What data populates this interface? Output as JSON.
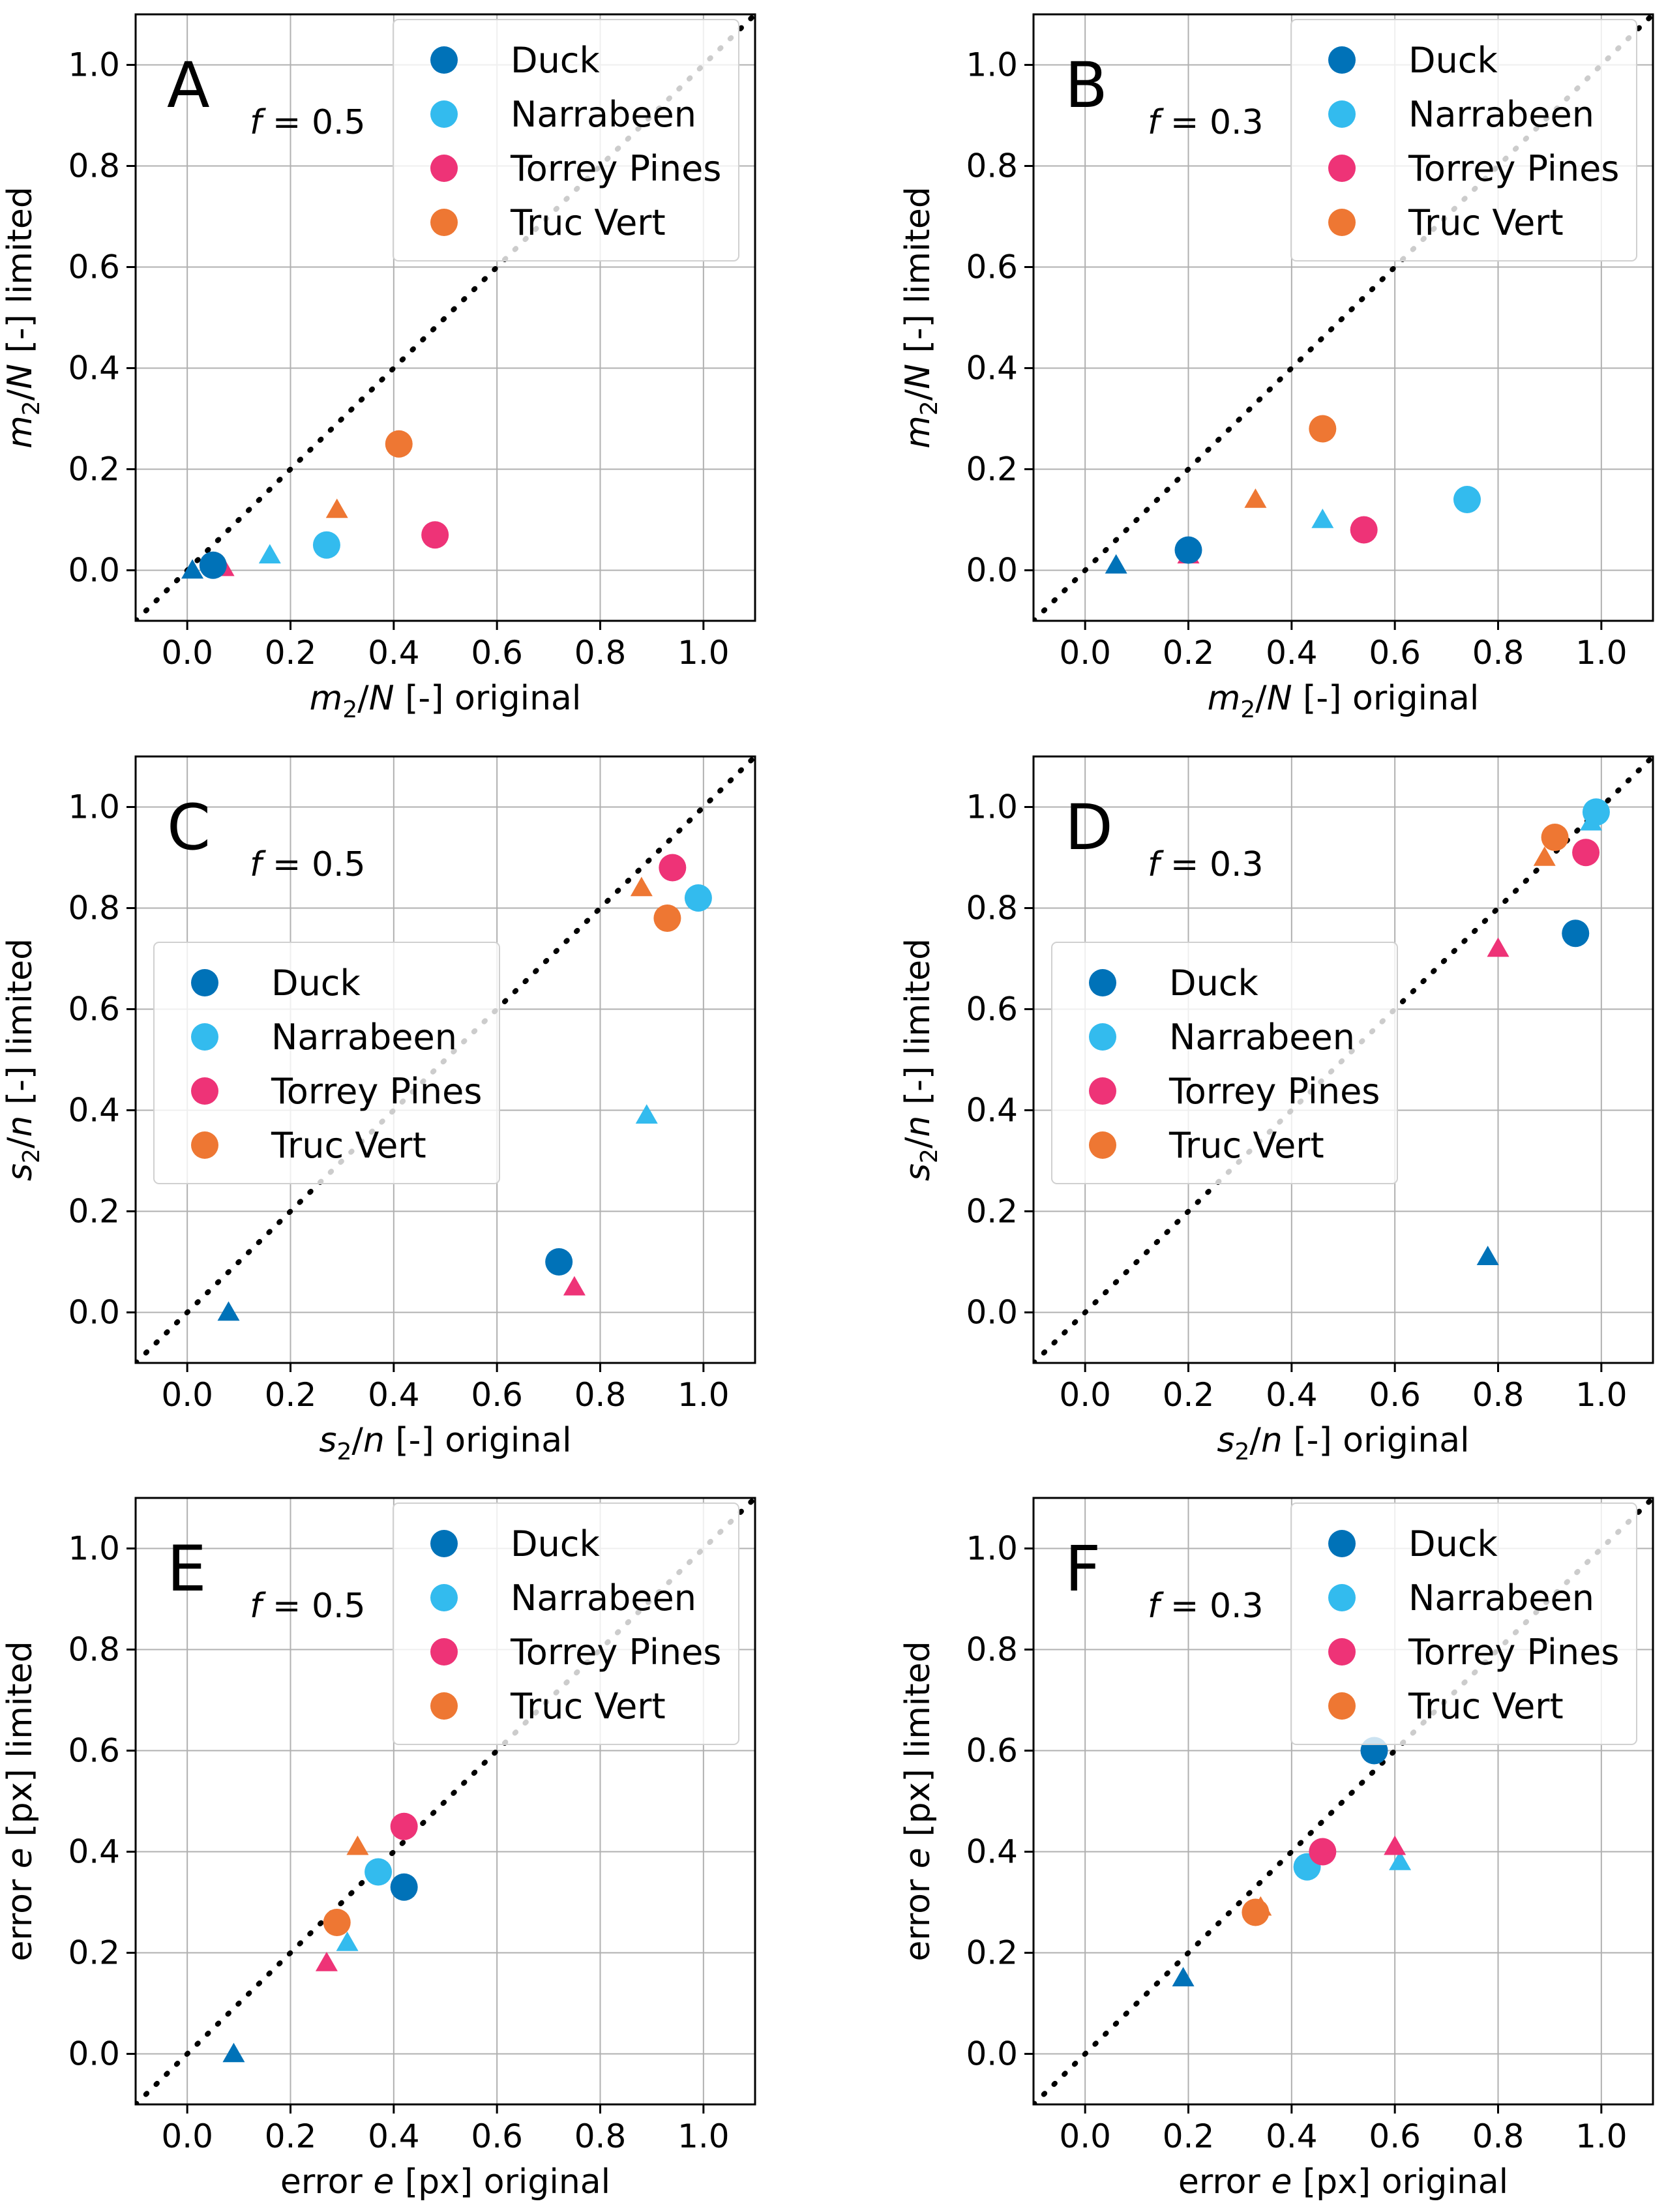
{
  "chart_data": [
    {
      "type": "scatter",
      "panel": "A",
      "annotation": "f = 0.5",
      "xlabel": "m₂/N [-] original",
      "ylabel": "m₂/N [-] limited",
      "xlim": [
        -0.1,
        1.1
      ],
      "ylim": [
        -0.1,
        1.1
      ],
      "ticks": [
        "0.0",
        "0.2",
        "0.4",
        "0.6",
        "0.8",
        "1.0"
      ],
      "legend": {
        "position": "top-right",
        "entries": [
          "Duck",
          "Narrabeen",
          "Torrey Pines",
          "Truc Vert"
        ]
      },
      "series": [
        {
          "name": "Duck",
          "color": "#0072b8",
          "circle": [
            0.05,
            0.01
          ],
          "triangle": [
            0.01,
            0.0
          ]
        },
        {
          "name": "Narrabeen",
          "color": "#33bbee",
          "circle": [
            0.27,
            0.05
          ],
          "triangle": [
            0.16,
            0.03
          ]
        },
        {
          "name": "Torrey Pines",
          "color": "#ee3377",
          "circle": [
            0.48,
            0.07
          ],
          "triangle": [
            0.07,
            0.005
          ]
        },
        {
          "name": "Truc Vert",
          "color": "#ee7733",
          "circle": [
            0.41,
            0.25
          ],
          "triangle": [
            0.29,
            0.12
          ]
        }
      ]
    },
    {
      "type": "scatter",
      "panel": "B",
      "annotation": "f = 0.3",
      "xlabel": "m₂/N [-] original",
      "ylabel": "m₂/N [-] limited",
      "xlim": [
        -0.1,
        1.1
      ],
      "ylim": [
        -0.1,
        1.1
      ],
      "ticks": [
        "0.0",
        "0.2",
        "0.4",
        "0.6",
        "0.8",
        "1.0"
      ],
      "legend": {
        "position": "top-right",
        "entries": [
          "Duck",
          "Narrabeen",
          "Torrey Pines",
          "Truc Vert"
        ]
      },
      "series": [
        {
          "name": "Duck",
          "color": "#0072b8",
          "circle": [
            0.2,
            0.04
          ],
          "triangle": [
            0.06,
            0.01
          ]
        },
        {
          "name": "Narrabeen",
          "color": "#33bbee",
          "circle": [
            0.74,
            0.14
          ],
          "triangle": [
            0.46,
            0.1
          ]
        },
        {
          "name": "Torrey Pines",
          "color": "#ee3377",
          "circle": [
            0.54,
            0.08
          ],
          "triangle": [
            0.2,
            0.03
          ]
        },
        {
          "name": "Truc Vert",
          "color": "#ee7733",
          "circle": [
            0.46,
            0.28
          ],
          "triangle": [
            0.33,
            0.14
          ]
        }
      ]
    },
    {
      "type": "scatter",
      "panel": "C",
      "annotation": "f = 0.5",
      "xlabel": "s₂/n [-] original",
      "ylabel": "s₂/n [-] limited",
      "xlim": [
        -0.1,
        1.1
      ],
      "ylim": [
        -0.1,
        1.1
      ],
      "ticks": [
        "0.0",
        "0.2",
        "0.4",
        "0.6",
        "0.8",
        "1.0"
      ],
      "legend": {
        "position": "center-left",
        "entries": [
          "Duck",
          "Narrabeen",
          "Torrey Pines",
          "Truc Vert"
        ]
      },
      "series": [
        {
          "name": "Duck",
          "color": "#0072b8",
          "circle": [
            0.72,
            0.1
          ],
          "triangle": [
            0.08,
            0.0
          ]
        },
        {
          "name": "Narrabeen",
          "color": "#33bbee",
          "circle": [
            0.99,
            0.82
          ],
          "triangle": [
            0.89,
            0.39
          ]
        },
        {
          "name": "Torrey Pines",
          "color": "#ee3377",
          "circle": [
            0.94,
            0.88
          ],
          "triangle": [
            0.75,
            0.05
          ]
        },
        {
          "name": "Truc Vert",
          "color": "#ee7733",
          "circle": [
            0.93,
            0.78
          ],
          "triangle": [
            0.88,
            0.84
          ]
        }
      ]
    },
    {
      "type": "scatter",
      "panel": "D",
      "annotation": "f = 0.3",
      "xlabel": "s₂/n [-] original",
      "ylabel": "s₂/n [-] limited",
      "xlim": [
        -0.1,
        1.1
      ],
      "ylim": [
        -0.1,
        1.1
      ],
      "ticks": [
        "0.0",
        "0.2",
        "0.4",
        "0.6",
        "0.8",
        "1.0"
      ],
      "legend": {
        "position": "center-left",
        "entries": [
          "Duck",
          "Narrabeen",
          "Torrey Pines",
          "Truc Vert"
        ]
      },
      "series": [
        {
          "name": "Duck",
          "color": "#0072b8",
          "circle": [
            0.95,
            0.75
          ],
          "triangle": [
            0.78,
            0.11
          ]
        },
        {
          "name": "Narrabeen",
          "color": "#33bbee",
          "circle": [
            0.99,
            0.99
          ],
          "triangle": [
            0.98,
            0.97
          ]
        },
        {
          "name": "Torrey Pines",
          "color": "#ee3377",
          "circle": [
            0.97,
            0.91
          ],
          "triangle": [
            0.8,
            0.72
          ]
        },
        {
          "name": "Truc Vert",
          "color": "#ee7733",
          "circle": [
            0.91,
            0.94
          ],
          "triangle": [
            0.89,
            0.9
          ]
        }
      ]
    },
    {
      "type": "scatter",
      "panel": "E",
      "annotation": "f = 0.5",
      "xlabel": "error e [px] original",
      "ylabel": "error e [px] limited",
      "xlim": [
        -0.1,
        1.1
      ],
      "ylim": [
        -0.1,
        1.1
      ],
      "ticks": [
        "0.0",
        "0.2",
        "0.4",
        "0.6",
        "0.8",
        "1.0"
      ],
      "legend": {
        "position": "top-right",
        "entries": [
          "Duck",
          "Narrabeen",
          "Torrey Pines",
          "Truc Vert"
        ]
      },
      "series": [
        {
          "name": "Duck",
          "color": "#0072b8",
          "circle": [
            0.42,
            0.33
          ],
          "triangle": [
            0.09,
            0.0
          ]
        },
        {
          "name": "Narrabeen",
          "color": "#33bbee",
          "circle": [
            0.37,
            0.36
          ],
          "triangle": [
            0.31,
            0.22
          ]
        },
        {
          "name": "Torrey Pines",
          "color": "#ee3377",
          "circle": [
            0.42,
            0.45
          ],
          "triangle": [
            0.27,
            0.18
          ]
        },
        {
          "name": "Truc Vert",
          "color": "#ee7733",
          "circle": [
            0.29,
            0.26
          ],
          "triangle": [
            0.33,
            0.41
          ]
        }
      ]
    },
    {
      "type": "scatter",
      "panel": "F",
      "annotation": "f = 0.3",
      "xlabel": "error e [px] original",
      "ylabel": "error e [px] limited",
      "xlim": [
        -0.1,
        1.1
      ],
      "ylim": [
        -0.1,
        1.1
      ],
      "ticks": [
        "0.0",
        "0.2",
        "0.4",
        "0.6",
        "0.8",
        "1.0"
      ],
      "legend": {
        "position": "top-right",
        "entries": [
          "Duck",
          "Narrabeen",
          "Torrey Pines",
          "Truc Vert"
        ]
      },
      "series": [
        {
          "name": "Duck",
          "color": "#0072b8",
          "circle": [
            0.56,
            0.6
          ],
          "triangle": [
            0.19,
            0.15
          ]
        },
        {
          "name": "Narrabeen",
          "color": "#33bbee",
          "circle": [
            0.43,
            0.37
          ],
          "triangle": [
            0.61,
            0.38
          ]
        },
        {
          "name": "Torrey Pines",
          "color": "#ee3377",
          "circle": [
            0.46,
            0.4
          ],
          "triangle": [
            0.6,
            0.41
          ]
        },
        {
          "name": "Truc Vert",
          "color": "#ee7733",
          "circle": [
            0.33,
            0.28
          ],
          "triangle": [
            0.34,
            0.29
          ]
        }
      ]
    }
  ]
}
